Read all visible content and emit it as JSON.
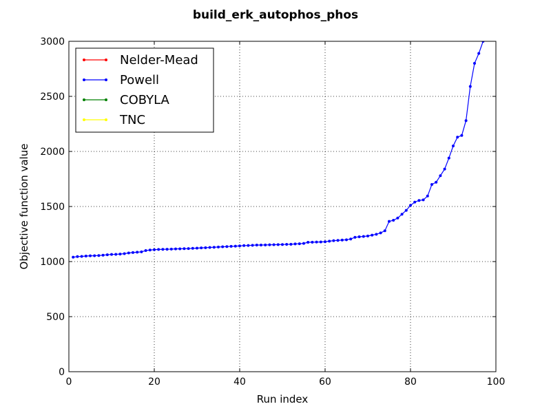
{
  "chart_data": {
    "type": "line",
    "title": "build_erk_autophos_phos",
    "xlabel": "Run index",
    "ylabel": "Objective function value",
    "xlim": [
      0,
      100
    ],
    "ylim": [
      0,
      3000
    ],
    "xticks": [
      "0",
      "20",
      "40",
      "60",
      "80",
      "100"
    ],
    "yticks": [
      "0",
      "500",
      "1000",
      "1500",
      "2000",
      "2500",
      "3000"
    ],
    "grid": true,
    "legend_position": "top-left",
    "series": [
      {
        "name": "Nelder-Mead",
        "color": "#ff0000",
        "x": [],
        "values": []
      },
      {
        "name": "Powell",
        "color": "#0000ff",
        "x": [
          1,
          2,
          3,
          4,
          5,
          6,
          7,
          8,
          9,
          10,
          11,
          12,
          13,
          14,
          15,
          16,
          17,
          18,
          19,
          20,
          21,
          22,
          23,
          24,
          25,
          26,
          27,
          28,
          29,
          30,
          31,
          32,
          33,
          34,
          35,
          36,
          37,
          38,
          39,
          40,
          41,
          42,
          43,
          44,
          45,
          46,
          47,
          48,
          49,
          50,
          51,
          52,
          53,
          54,
          55,
          56,
          57,
          58,
          59,
          60,
          61,
          62,
          63,
          64,
          65,
          66,
          67,
          68,
          69,
          70,
          71,
          72,
          73,
          74,
          75,
          76,
          77,
          78,
          79,
          80,
          81,
          82,
          83,
          84,
          85,
          86,
          87,
          88,
          89,
          90,
          91,
          92,
          93,
          94,
          95,
          96,
          97
        ],
        "values": [
          1040,
          1045,
          1047,
          1050,
          1052,
          1053,
          1055,
          1058,
          1062,
          1065,
          1066,
          1068,
          1072,
          1078,
          1082,
          1085,
          1088,
          1100,
          1105,
          1108,
          1110,
          1111,
          1112,
          1113,
          1115,
          1116,
          1117,
          1118,
          1120,
          1122,
          1124,
          1126,
          1128,
          1130,
          1132,
          1134,
          1136,
          1138,
          1140,
          1142,
          1145,
          1146,
          1148,
          1150,
          1150,
          1151,
          1152,
          1153,
          1154,
          1155,
          1156,
          1157,
          1160,
          1162,
          1165,
          1175,
          1176,
          1177,
          1178,
          1180,
          1185,
          1190,
          1192,
          1195,
          1198,
          1205,
          1220,
          1225,
          1228,
          1232,
          1240,
          1248,
          1260,
          1280,
          1365,
          1375,
          1395,
          1430,
          1465,
          1510,
          1540,
          1555,
          1560,
          1595,
          1700,
          1720,
          1780,
          1840,
          1940,
          2050,
          2130,
          2145,
          2280,
          2590,
          2800,
          2890,
          3000
        ]
      },
      {
        "name": "COBYLA",
        "color": "#008000",
        "x": [],
        "values": []
      },
      {
        "name": "TNC",
        "color": "#ffff00",
        "x": [],
        "values": []
      }
    ]
  }
}
